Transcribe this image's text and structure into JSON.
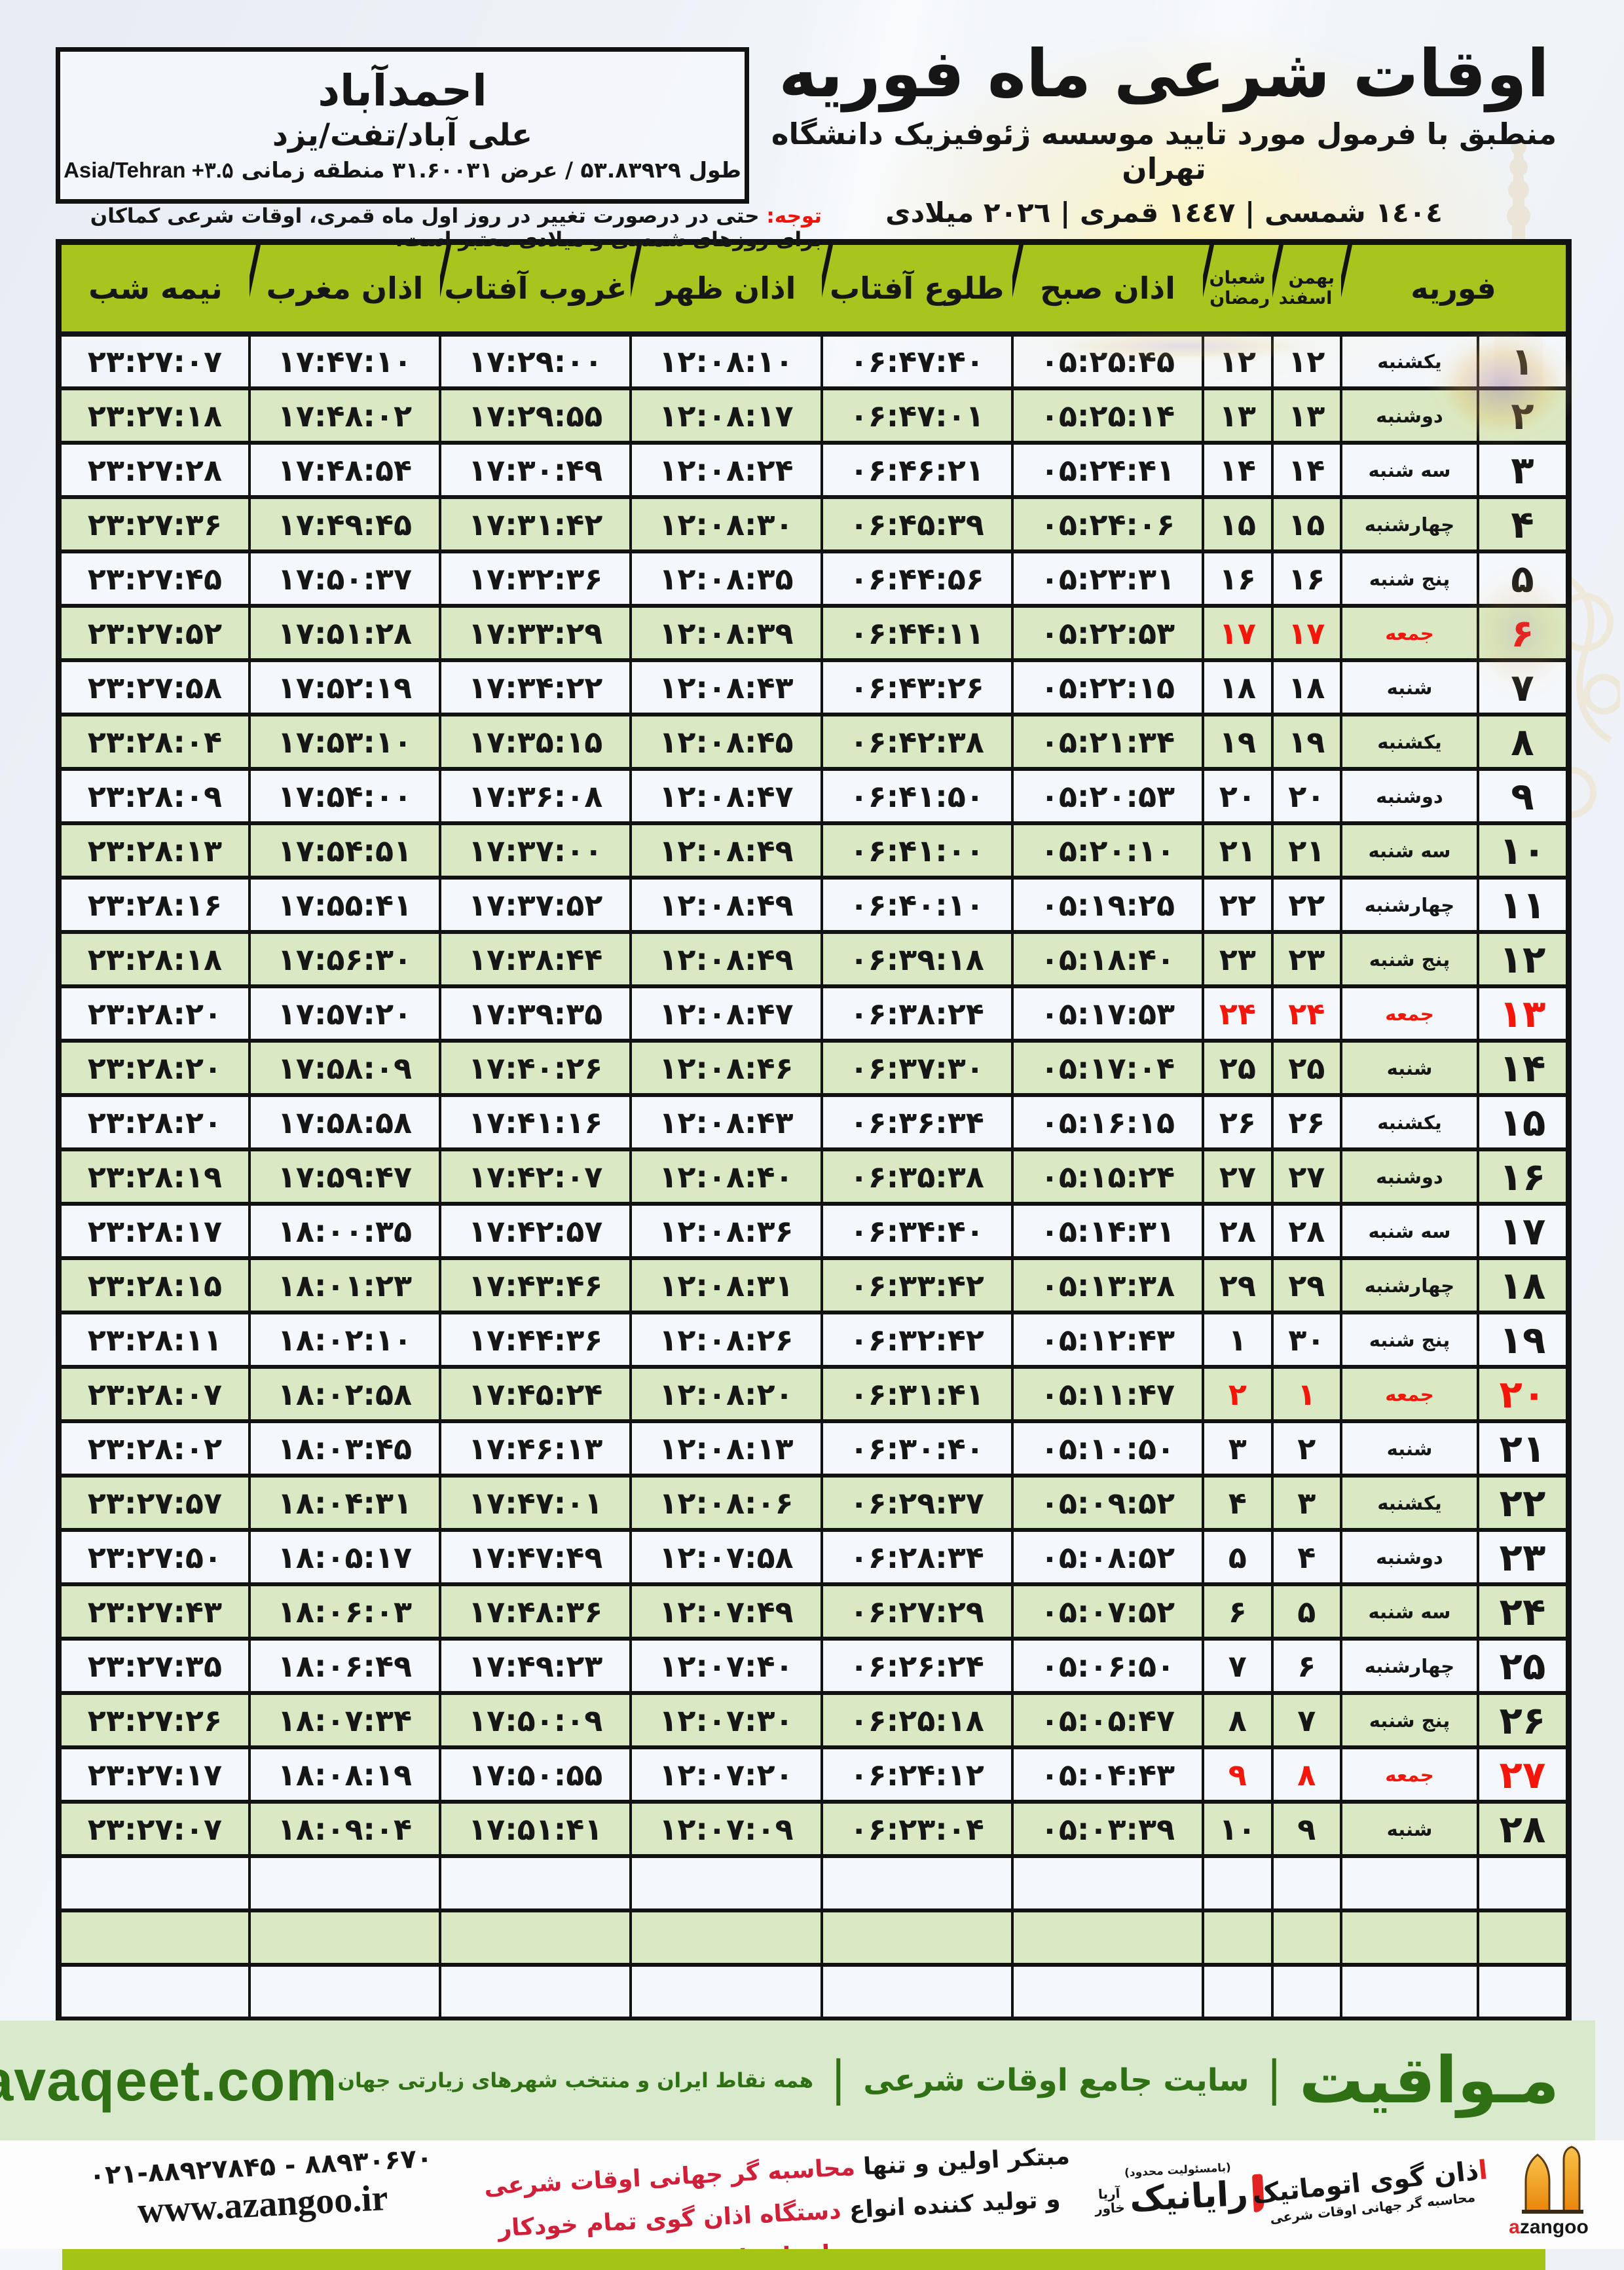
{
  "header": {
    "title": "اوقات شرعی ماه فوریه",
    "subtitle": "منطبق با فرمول مورد تایید موسسه ژئوفیزیک دانشگاه تهران",
    "years": "١٤٠٤ شمسی | ١٤٤٧ قمری | ٢٠٢٦ میلادی"
  },
  "city": {
    "name": "احمدآباد",
    "region": "علی آباد/تفت/یزد",
    "coords": "طول ۵۳.۸۳۹۲۹ / عرض ۳۱.۶۰۰۳۱ منطقه زمانی",
    "tz": "Asia/Tehran +۳.۵"
  },
  "notice": {
    "label": "توجه:",
    "text": "حتی در درصورت تغییر در روز اول ماه قمری، اوقات شرعی کماکان برای روزهای شمسی و میلادی معتبر است."
  },
  "table": {
    "columns": {
      "month": "فوریه",
      "solar_top": "بهمن",
      "solar_bottom": "اسفند",
      "lunar_top": "شعبان",
      "lunar_bottom": "رمضان",
      "sobh": "اذان صبح",
      "tolu": "طلوع آفتاب",
      "zohr": "اذان ظهر",
      "ghorub": "غروب آفتاب",
      "maghreb": "اذان مغرب",
      "nimeshab": "نیمه شب"
    },
    "empty_rows": 3,
    "days": [
      {
        "day": "۱",
        "weekday": "یکشنبه",
        "solar": "۱۲",
        "lunar": "۱۲",
        "sobh": "۰۵:۲۵:۴۵",
        "tolu": "۰۶:۴۷:۴۰",
        "zohr": "۱۲:۰۸:۱۰",
        "ghorub": "۱۷:۲۹:۰۰",
        "maghreb": "۱۷:۴۷:۱۰",
        "nimeshab": "۲۳:۲۷:۰۷",
        "friday": false
      },
      {
        "day": "۲",
        "weekday": "دوشنبه",
        "solar": "۱۳",
        "lunar": "۱۳",
        "sobh": "۰۵:۲۵:۱۴",
        "tolu": "۰۶:۴۷:۰۱",
        "zohr": "۱۲:۰۸:۱۷",
        "ghorub": "۱۷:۲۹:۵۵",
        "maghreb": "۱۷:۴۸:۰۲",
        "nimeshab": "۲۳:۲۷:۱۸",
        "friday": false
      },
      {
        "day": "۳",
        "weekday": "سه شنبه",
        "solar": "۱۴",
        "lunar": "۱۴",
        "sobh": "۰۵:۲۴:۴۱",
        "tolu": "۰۶:۴۶:۲۱",
        "zohr": "۱۲:۰۸:۲۴",
        "ghorub": "۱۷:۳۰:۴۹",
        "maghreb": "۱۷:۴۸:۵۴",
        "nimeshab": "۲۳:۲۷:۲۸",
        "friday": false
      },
      {
        "day": "۴",
        "weekday": "چهارشنبه",
        "solar": "۱۵",
        "lunar": "۱۵",
        "sobh": "۰۵:۲۴:۰۶",
        "tolu": "۰۶:۴۵:۳۹",
        "zohr": "۱۲:۰۸:۳۰",
        "ghorub": "۱۷:۳۱:۴۲",
        "maghreb": "۱۷:۴۹:۴۵",
        "nimeshab": "۲۳:۲۷:۳۶",
        "friday": false
      },
      {
        "day": "۵",
        "weekday": "پنج شنبه",
        "solar": "۱۶",
        "lunar": "۱۶",
        "sobh": "۰۵:۲۳:۳۱",
        "tolu": "۰۶:۴۴:۵۶",
        "zohr": "۱۲:۰۸:۳۵",
        "ghorub": "۱۷:۳۲:۳۶",
        "maghreb": "۱۷:۵۰:۳۷",
        "nimeshab": "۲۳:۲۷:۴۵",
        "friday": false
      },
      {
        "day": "۶",
        "weekday": "جمعه",
        "solar": "۱۷",
        "lunar": "۱۷",
        "sobh": "۰۵:۲۲:۵۳",
        "tolu": "۰۶:۴۴:۱۱",
        "zohr": "۱۲:۰۸:۳۹",
        "ghorub": "۱۷:۳۳:۲۹",
        "maghreb": "۱۷:۵۱:۲۸",
        "nimeshab": "۲۳:۲۷:۵۲",
        "friday": true
      },
      {
        "day": "۷",
        "weekday": "شنبه",
        "solar": "۱۸",
        "lunar": "۱۸",
        "sobh": "۰۵:۲۲:۱۵",
        "tolu": "۰۶:۴۳:۲۶",
        "zohr": "۱۲:۰۸:۴۳",
        "ghorub": "۱۷:۳۴:۲۲",
        "maghreb": "۱۷:۵۲:۱۹",
        "nimeshab": "۲۳:۲۷:۵۸",
        "friday": false
      },
      {
        "day": "۸",
        "weekday": "یکشنبه",
        "solar": "۱۹",
        "lunar": "۱۹",
        "sobh": "۰۵:۲۱:۳۴",
        "tolu": "۰۶:۴۲:۳۸",
        "zohr": "۱۲:۰۸:۴۵",
        "ghorub": "۱۷:۳۵:۱۵",
        "maghreb": "۱۷:۵۳:۱۰",
        "nimeshab": "۲۳:۲۸:۰۴",
        "friday": false
      },
      {
        "day": "۹",
        "weekday": "دوشنبه",
        "solar": "۲۰",
        "lunar": "۲۰",
        "sobh": "۰۵:۲۰:۵۳",
        "tolu": "۰۶:۴۱:۵۰",
        "zohr": "۱۲:۰۸:۴۷",
        "ghorub": "۱۷:۳۶:۰۸",
        "maghreb": "۱۷:۵۴:۰۰",
        "nimeshab": "۲۳:۲۸:۰۹",
        "friday": false
      },
      {
        "day": "۱۰",
        "weekday": "سه شنبه",
        "solar": "۲۱",
        "lunar": "۲۱",
        "sobh": "۰۵:۲۰:۱۰",
        "tolu": "۰۶:۴۱:۰۰",
        "zohr": "۱۲:۰۸:۴۹",
        "ghorub": "۱۷:۳۷:۰۰",
        "maghreb": "۱۷:۵۴:۵۱",
        "nimeshab": "۲۳:۲۸:۱۳",
        "friday": false
      },
      {
        "day": "۱۱",
        "weekday": "چهارشنبه",
        "solar": "۲۲",
        "lunar": "۲۲",
        "sobh": "۰۵:۱۹:۲۵",
        "tolu": "۰۶:۴۰:۱۰",
        "zohr": "۱۲:۰۸:۴۹",
        "ghorub": "۱۷:۳۷:۵۲",
        "maghreb": "۱۷:۵۵:۴۱",
        "nimeshab": "۲۳:۲۸:۱۶",
        "friday": false
      },
      {
        "day": "۱۲",
        "weekday": "پنج شنبه",
        "solar": "۲۳",
        "lunar": "۲۳",
        "sobh": "۰۵:۱۸:۴۰",
        "tolu": "۰۶:۳۹:۱۸",
        "zohr": "۱۲:۰۸:۴۹",
        "ghorub": "۱۷:۳۸:۴۴",
        "maghreb": "۱۷:۵۶:۳۰",
        "nimeshab": "۲۳:۲۸:۱۸",
        "friday": false
      },
      {
        "day": "۱۳",
        "weekday": "جمعه",
        "solar": "۲۴",
        "lunar": "۲۴",
        "sobh": "۰۵:۱۷:۵۳",
        "tolu": "۰۶:۳۸:۲۴",
        "zohr": "۱۲:۰۸:۴۷",
        "ghorub": "۱۷:۳۹:۳۵",
        "maghreb": "۱۷:۵۷:۲۰",
        "nimeshab": "۲۳:۲۸:۲۰",
        "friday": true
      },
      {
        "day": "۱۴",
        "weekday": "شنبه",
        "solar": "۲۵",
        "lunar": "۲۵",
        "sobh": "۰۵:۱۷:۰۴",
        "tolu": "۰۶:۳۷:۳۰",
        "zohr": "۱۲:۰۸:۴۶",
        "ghorub": "۱۷:۴۰:۲۶",
        "maghreb": "۱۷:۵۸:۰۹",
        "nimeshab": "۲۳:۲۸:۲۰",
        "friday": false
      },
      {
        "day": "۱۵",
        "weekday": "یکشنبه",
        "solar": "۲۶",
        "lunar": "۲۶",
        "sobh": "۰۵:۱۶:۱۵",
        "tolu": "۰۶:۳۶:۳۴",
        "zohr": "۱۲:۰۸:۴۳",
        "ghorub": "۱۷:۴۱:۱۶",
        "maghreb": "۱۷:۵۸:۵۸",
        "nimeshab": "۲۳:۲۸:۲۰",
        "friday": false
      },
      {
        "day": "۱۶",
        "weekday": "دوشنبه",
        "solar": "۲۷",
        "lunar": "۲۷",
        "sobh": "۰۵:۱۵:۲۴",
        "tolu": "۰۶:۳۵:۳۸",
        "zohr": "۱۲:۰۸:۴۰",
        "ghorub": "۱۷:۴۲:۰۷",
        "maghreb": "۱۷:۵۹:۴۷",
        "nimeshab": "۲۳:۲۸:۱۹",
        "friday": false
      },
      {
        "day": "۱۷",
        "weekday": "سه شنبه",
        "solar": "۲۸",
        "lunar": "۲۸",
        "sobh": "۰۵:۱۴:۳۱",
        "tolu": "۰۶:۳۴:۴۰",
        "zohr": "۱۲:۰۸:۳۶",
        "ghorub": "۱۷:۴۲:۵۷",
        "maghreb": "۱۸:۰۰:۳۵",
        "nimeshab": "۲۳:۲۸:۱۷",
        "friday": false
      },
      {
        "day": "۱۸",
        "weekday": "چهارشنبه",
        "solar": "۲۹",
        "lunar": "۲۹",
        "sobh": "۰۵:۱۳:۳۸",
        "tolu": "۰۶:۳۳:۴۲",
        "zohr": "۱۲:۰۸:۳۱",
        "ghorub": "۱۷:۴۳:۴۶",
        "maghreb": "۱۸:۰۱:۲۳",
        "nimeshab": "۲۳:۲۸:۱۵",
        "friday": false
      },
      {
        "day": "۱۹",
        "weekday": "پنج شنبه",
        "solar": "۳۰",
        "lunar": "۱",
        "sobh": "۰۵:۱۲:۴۳",
        "tolu": "۰۶:۳۲:۴۲",
        "zohr": "۱۲:۰۸:۲۶",
        "ghorub": "۱۷:۴۴:۳۶",
        "maghreb": "۱۸:۰۲:۱۰",
        "nimeshab": "۲۳:۲۸:۱۱",
        "friday": false
      },
      {
        "day": "۲۰",
        "weekday": "جمعه",
        "solar": "۱",
        "lunar": "۲",
        "sobh": "۰۵:۱۱:۴۷",
        "tolu": "۰۶:۳۱:۴۱",
        "zohr": "۱۲:۰۸:۲۰",
        "ghorub": "۱۷:۴۵:۲۴",
        "maghreb": "۱۸:۰۲:۵۸",
        "nimeshab": "۲۳:۲۸:۰۷",
        "friday": true
      },
      {
        "day": "۲۱",
        "weekday": "شنبه",
        "solar": "۲",
        "lunar": "۳",
        "sobh": "۰۵:۱۰:۵۰",
        "tolu": "۰۶:۳۰:۴۰",
        "zohr": "۱۲:۰۸:۱۳",
        "ghorub": "۱۷:۴۶:۱۳",
        "maghreb": "۱۸:۰۳:۴۵",
        "nimeshab": "۲۳:۲۸:۰۲",
        "friday": false
      },
      {
        "day": "۲۲",
        "weekday": "یکشنبه",
        "solar": "۳",
        "lunar": "۴",
        "sobh": "۰۵:۰۹:۵۲",
        "tolu": "۰۶:۲۹:۳۷",
        "zohr": "۱۲:۰۸:۰۶",
        "ghorub": "۱۷:۴۷:۰۱",
        "maghreb": "۱۸:۰۴:۳۱",
        "nimeshab": "۲۳:۲۷:۵۷",
        "friday": false
      },
      {
        "day": "۲۳",
        "weekday": "دوشنبه",
        "solar": "۴",
        "lunar": "۵",
        "sobh": "۰۵:۰۸:۵۲",
        "tolu": "۰۶:۲۸:۳۴",
        "zohr": "۱۲:۰۷:۵۸",
        "ghorub": "۱۷:۴۷:۴۹",
        "maghreb": "۱۸:۰۵:۱۷",
        "nimeshab": "۲۳:۲۷:۵۰",
        "friday": false
      },
      {
        "day": "۲۴",
        "weekday": "سه شنبه",
        "solar": "۵",
        "lunar": "۶",
        "sobh": "۰۵:۰۷:۵۲",
        "tolu": "۰۶:۲۷:۲۹",
        "zohr": "۱۲:۰۷:۴۹",
        "ghorub": "۱۷:۴۸:۳۶",
        "maghreb": "۱۸:۰۶:۰۳",
        "nimeshab": "۲۳:۲۷:۴۳",
        "friday": false
      },
      {
        "day": "۲۵",
        "weekday": "چهارشنبه",
        "solar": "۶",
        "lunar": "۷",
        "sobh": "۰۵:۰۶:۵۰",
        "tolu": "۰۶:۲۶:۲۴",
        "zohr": "۱۲:۰۷:۴۰",
        "ghorub": "۱۷:۴۹:۲۳",
        "maghreb": "۱۸:۰۶:۴۹",
        "nimeshab": "۲۳:۲۷:۳۵",
        "friday": false
      },
      {
        "day": "۲۶",
        "weekday": "پنج شنبه",
        "solar": "۷",
        "lunar": "۸",
        "sobh": "۰۵:۰۵:۴۷",
        "tolu": "۰۶:۲۵:۱۸",
        "zohr": "۱۲:۰۷:۳۰",
        "ghorub": "۱۷:۵۰:۰۹",
        "maghreb": "۱۸:۰۷:۳۴",
        "nimeshab": "۲۳:۲۷:۲۶",
        "friday": false
      },
      {
        "day": "۲۷",
        "weekday": "جمعه",
        "solar": "۸",
        "lunar": "۹",
        "sobh": "۰۵:۰۴:۴۳",
        "tolu": "۰۶:۲۴:۱۲",
        "zohr": "۱۲:۰۷:۲۰",
        "ghorub": "۱۷:۵۰:۵۵",
        "maghreb": "۱۸:۰۸:۱۹",
        "nimeshab": "۲۳:۲۷:۱۷",
        "friday": true
      },
      {
        "day": "۲۸",
        "weekday": "شنبه",
        "solar": "۹",
        "lunar": "۱۰",
        "sobh": "۰۵:۰۳:۳۹",
        "tolu": "۰۶:۲۳:۰۴",
        "zohr": "۱۲:۰۷:۰۹",
        "ghorub": "۱۷:۵۱:۴۱",
        "maghreb": "۱۸:۰۹:۰۴",
        "nimeshab": "۲۳:۲۷:۰۷",
        "friday": false
      }
    ]
  },
  "site_band": {
    "brand": "مـواقیت",
    "tagline1": "سایت جامع اوقات شرعی",
    "tagline2": "همه نقاط ایران و منتخب شهرهای زیارتی جهان",
    "separator": "|",
    "domain": "mavaqeet.com"
  },
  "footer": {
    "phone": "۰۲۱-۸۸۹۲۷۸۴۵ - ۸۸۹۳۰۶۷۰",
    "website": "www.azangoo.ir",
    "slogan_black1": "مبتکر اولین و تنها ",
    "slogan_red1": "محاسبه گر جهانی اوقات شرعی",
    "slogan_black2": "و تولید کننده انواع ",
    "slogan_red2": "دستگاه اذان گوی تمام خودکار ماهواره ای",
    "rayanik": {
      "note": "(بامسئولیت محدود)",
      "side_top": "آریا",
      "side_bottom": "خاور",
      "name": "رایانیک"
    },
    "azangoo": {
      "name_red": "ا",
      "name_rest": "ذان گوی اتوماتیک",
      "sub": "محاسبه گر جهانی اوقات شرعی",
      "en_red": "a",
      "en_rest": "zangoo"
    }
  },
  "colors": {
    "header_green": "#a8c41f",
    "row_green": "#d9e9c4",
    "row_white": "#f4f7fb",
    "friday_red": "#f2160b",
    "notice_red": "#ee1409",
    "slogan_red": "#d01f38",
    "band_bg": "#d9e9cc",
    "band_text": "#2f7015",
    "lime": "#a4c517",
    "azangoo_orange": "#f2a127"
  }
}
